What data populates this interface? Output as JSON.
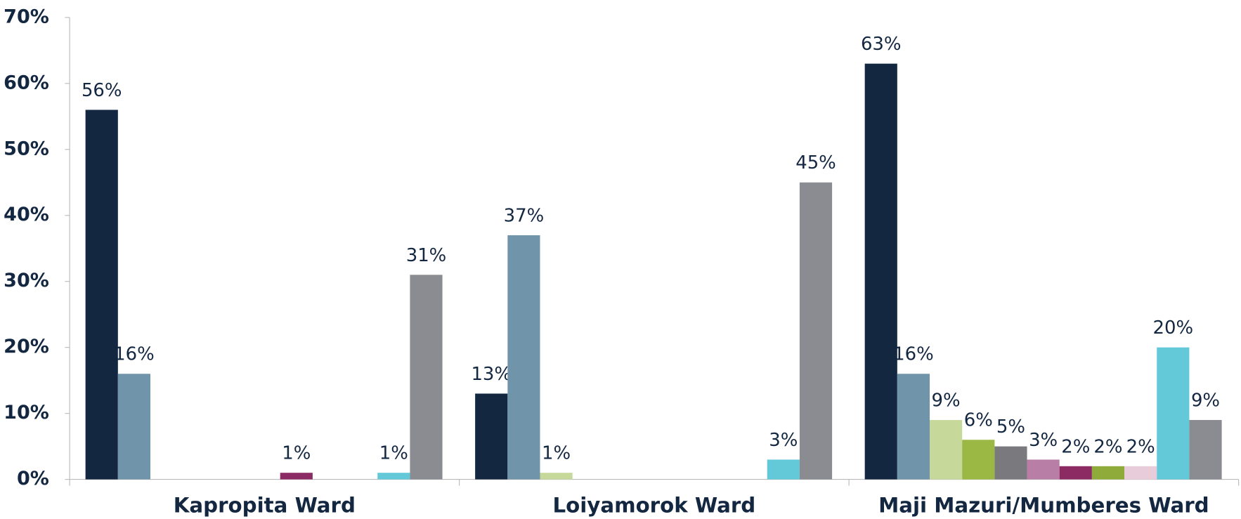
{
  "chart_data": {
    "type": "bar",
    "categories": [
      "Kapropita Ward",
      "Loiyamorok Ward",
      "Maji Mazuri/Mumberes Ward"
    ],
    "series": [
      {
        "color": "#132741",
        "values": [
          56,
          13,
          63
        ],
        "value_labels": [
          "56%",
          "13%",
          "63%"
        ]
      },
      {
        "color": "#7094aa",
        "values": [
          16,
          37,
          16
        ],
        "value_labels": [
          "16%",
          "37%",
          "16%"
        ]
      },
      {
        "color": "#c6d99a",
        "values": [
          null,
          1,
          9
        ],
        "value_labels": [
          null,
          "1%",
          "9%"
        ]
      },
      {
        "color": "#9ab843",
        "values": [
          null,
          null,
          6
        ],
        "value_labels": [
          null,
          null,
          "6%"
        ]
      },
      {
        "color": "#7a7a7e",
        "values": [
          null,
          null,
          5
        ],
        "value_labels": [
          null,
          null,
          "5%"
        ]
      },
      {
        "color": "#b97ea5",
        "values": [
          null,
          null,
          3
        ],
        "value_labels": [
          null,
          null,
          "3%"
        ]
      },
      {
        "color": "#8b2a63",
        "values": [
          1,
          null,
          2
        ],
        "value_labels": [
          "1%",
          null,
          "2%"
        ]
      },
      {
        "color": "#8fac3b",
        "values": [
          null,
          null,
          2
        ],
        "value_labels": [
          null,
          null,
          "2%"
        ]
      },
      {
        "color": "#e8ccd9",
        "values": [
          null,
          null,
          2
        ],
        "value_labels": [
          null,
          null,
          "2%"
        ]
      },
      {
        "color": "#63c8d8",
        "values": [
          1,
          3,
          20
        ],
        "value_labels": [
          "1%",
          "3%",
          "20%"
        ]
      },
      {
        "color": "#8a8c91",
        "values": [
          31,
          45,
          9
        ],
        "value_labels": [
          "31%",
          "45%",
          "9%"
        ]
      }
    ],
    "ylim": [
      0,
      70
    ],
    "yticks": [
      {
        "value": 0,
        "label": "0%"
      },
      {
        "value": 10,
        "label": "10%"
      },
      {
        "value": 20,
        "label": "20%"
      },
      {
        "value": 30,
        "label": "30%"
      },
      {
        "value": 40,
        "label": "40%"
      },
      {
        "value": 50,
        "label": "50%"
      },
      {
        "value": 60,
        "label": "60%"
      },
      {
        "value": 70,
        "label": "70%"
      }
    ],
    "grid": false
  }
}
